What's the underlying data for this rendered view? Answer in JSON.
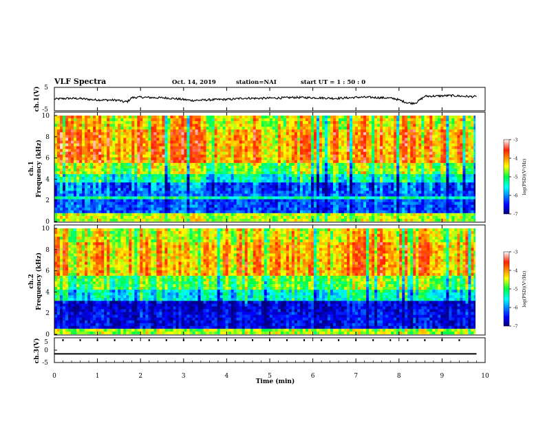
{
  "header": {
    "title": "VLF Spectra",
    "date": "Oct. 14, 2019",
    "station": "station=NAI",
    "start_ut": "start  UT =   1 : 50 : 0"
  },
  "chart_data": [
    {
      "type": "line",
      "panel": "ch1-waveform",
      "ylabel": "ch.1(V)",
      "ylim": [
        -5,
        5
      ],
      "yticks": [
        "5",
        "-5"
      ],
      "x_unit": "min",
      "x": [
        0,
        0.3,
        0.6,
        0.9,
        1.2,
        1.5,
        1.6,
        1.7,
        1.8,
        2.0,
        2.3,
        2.6,
        2.9,
        3.2,
        3.5,
        3.8,
        4.1,
        4.4,
        4.7,
        5.0,
        5.3,
        5.6,
        5.9,
        6.2,
        6.5,
        6.8,
        7.1,
        7.4,
        7.7,
        7.9,
        8.1,
        8.2,
        8.3,
        8.4,
        8.6,
        8.9,
        9.2,
        9.5,
        9.8
      ],
      "values": [
        0.0,
        0.3,
        0.2,
        -0.3,
        -0.4,
        -0.5,
        -1.2,
        -1.0,
        0.6,
        0.8,
        0.6,
        0.5,
        0.0,
        -0.6,
        -0.4,
        -0.2,
        -0.1,
        0.4,
        0.3,
        0.4,
        0.5,
        0.7,
        0.6,
        0.5,
        0.3,
        0.5,
        0.8,
        0.7,
        0.5,
        0.2,
        -1.0,
        -1.6,
        -1.8,
        -1.5,
        1.2,
        1.3,
        1.5,
        1.2,
        1.0
      ],
      "color": "#000000"
    },
    {
      "type": "heatmap",
      "panel": "ch1-spectrogram",
      "ylabel": "ch.1\nFrequency (kHz)",
      "ylabel_line1": "ch.1",
      "ylabel_line2": "Frequency (kHz)",
      "xlim": [
        0,
        9.8
      ],
      "ylim": [
        0,
        10
      ],
      "yticks": [
        0,
        2,
        4,
        6,
        8,
        10
      ],
      "colorbar": {
        "range": [
          -7,
          -3
        ],
        "ticks": [
          "-3",
          "-4",
          "-5",
          "-6",
          "-7"
        ],
        "label": "log(PSD)(V²/Hz)"
      },
      "bands": [
        {
          "from": 0,
          "to": 0.8,
          "level": 0.62
        },
        {
          "from": 0.8,
          "to": 2.0,
          "level": 0.2
        },
        {
          "from": 2.0,
          "to": 2.4,
          "level": 0.45
        },
        {
          "from": 2.4,
          "to": 3.6,
          "level": 0.22
        },
        {
          "from": 3.6,
          "to": 4.6,
          "level": 0.42
        },
        {
          "from": 4.6,
          "to": 5.6,
          "level": 0.58
        },
        {
          "from": 5.6,
          "to": 8.8,
          "level": 0.76
        },
        {
          "from": 8.8,
          "to": 10.0,
          "level": 0.68
        }
      ]
    },
    {
      "type": "heatmap",
      "panel": "ch2-spectrogram",
      "ylabel": "ch.2\nFrequency (kHz)",
      "ylabel_line1": "ch.2",
      "ylabel_line2": "Frequency (kHz)",
      "xlim": [
        0,
        9.8
      ],
      "ylim": [
        0,
        10
      ],
      "yticks": [
        0,
        2,
        4,
        6,
        8,
        10
      ],
      "colorbar": {
        "range": [
          -7,
          -3
        ],
        "ticks": [
          "-3",
          "-4",
          "-5",
          "-6",
          "-7"
        ],
        "label": "log(PSD)(V²/Hz)"
      },
      "bands": [
        {
          "from": 0,
          "to": 0.6,
          "level": 0.6
        },
        {
          "from": 0.6,
          "to": 2.0,
          "level": 0.12
        },
        {
          "from": 2.0,
          "to": 3.2,
          "level": 0.1
        },
        {
          "from": 3.2,
          "to": 4.2,
          "level": 0.4
        },
        {
          "from": 4.2,
          "to": 5.6,
          "level": 0.55
        },
        {
          "from": 5.6,
          "to": 8.8,
          "level": 0.74
        },
        {
          "from": 8.8,
          "to": 10.0,
          "level": 0.66
        }
      ]
    },
    {
      "type": "line",
      "panel": "ch3-waveform",
      "ylabel": "ch.3(V)",
      "ylim": [
        -5,
        5
      ],
      "yticks": [
        "5",
        "0",
        "-5"
      ],
      "x_unit": "min",
      "x": [
        0,
        9.8
      ],
      "values": [
        -1.5,
        -1.5
      ],
      "color": "#000000"
    }
  ],
  "x_axis": {
    "label": "Time  (min)",
    "range": [
      0,
      10
    ],
    "ticks": [
      "0",
      "1",
      "2",
      "3",
      "4",
      "5",
      "6",
      "7",
      "8",
      "9",
      "10"
    ]
  }
}
